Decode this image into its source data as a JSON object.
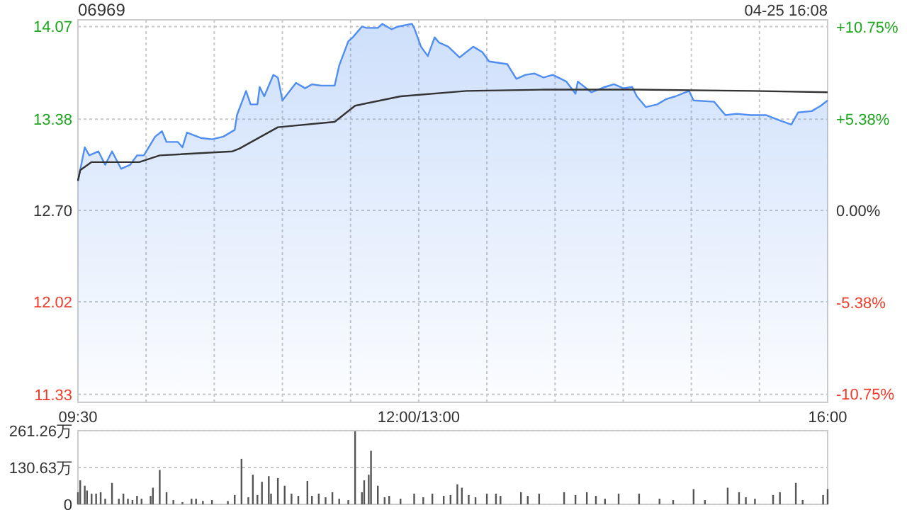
{
  "chart_data": [
    {
      "type": "area",
      "title": "06969",
      "annotations": [
        "04-25 16:08"
      ],
      "categories": [
        "09:30",
        null,
        null,
        null,
        null,
        null,
        null,
        null,
        null,
        null,
        null,
        null,
        null,
        null,
        null,
        null,
        null,
        null,
        null,
        null,
        null,
        null,
        null,
        null,
        null,
        null,
        null,
        null,
        null,
        null,
        null,
        null,
        null,
        null,
        null,
        null,
        null,
        null,
        null,
        null,
        null,
        null,
        null,
        null,
        null,
        null,
        null,
        null,
        null,
        null,
        null,
        null,
        null,
        null,
        null,
        null,
        null,
        null,
        null,
        null,
        null,
        null,
        null,
        null,
        null,
        null,
        null,
        null,
        null,
        null,
        null,
        null,
        null,
        null,
        null,
        null,
        null,
        null,
        null,
        null,
        null,
        null,
        null,
        null,
        null,
        null,
        null,
        null,
        null,
        null,
        null,
        null,
        null,
        null,
        null,
        null,
        null,
        null,
        null,
        null,
        null,
        null,
        null,
        null,
        null,
        null,
        null,
        null,
        null,
        null,
        null,
        null,
        null,
        null,
        null,
        null,
        null,
        null,
        null,
        null,
        null,
        null,
        null,
        null,
        null,
        null,
        null,
        null,
        null,
        null,
        null,
        null,
        null,
        null,
        null,
        null,
        null,
        null,
        null,
        null,
        null,
        null,
        null,
        null,
        null,
        null,
        null,
        null,
        null,
        null,
        "12:00/13:00",
        null,
        null,
        null,
        null,
        null,
        null,
        null,
        null,
        null,
        null,
        null,
        null,
        null,
        null,
        null,
        null,
        null,
        null,
        null,
        null,
        null,
        null,
        null,
        null,
        null,
        null,
        null,
        null,
        null,
        null,
        null,
        null,
        null,
        null,
        null,
        null,
        null,
        null,
        null,
        null,
        null,
        null,
        null,
        null,
        null,
        null,
        null,
        null,
        null,
        null,
        null,
        null,
        null,
        null,
        null,
        null,
        null,
        null,
        null,
        null,
        null,
        null,
        null,
        null,
        null,
        null,
        null,
        null,
        null,
        null,
        null,
        null,
        null,
        null,
        null,
        null,
        null,
        null,
        null,
        null,
        null,
        null,
        null,
        null,
        null,
        null,
        null,
        null,
        null,
        null,
        null,
        null,
        null,
        null,
        null,
        null,
        null,
        null,
        null,
        null,
        null,
        null,
        null,
        null,
        null,
        null,
        null,
        null,
        null,
        null,
        null,
        null,
        null,
        null,
        null,
        null,
        null,
        null,
        null,
        null,
        null,
        null,
        null,
        null,
        null,
        null,
        null,
        null,
        null,
        null,
        null,
        null,
        null,
        null,
        null,
        null,
        null,
        null,
        null,
        null,
        null,
        null,
        null,
        null,
        null,
        null,
        null,
        null,
        null,
        null,
        null,
        null,
        null,
        null,
        null,
        null,
        null,
        null,
        null,
        null,
        null,
        null,
        null,
        null,
        null,
        null,
        null,
        null,
        null,
        null,
        null,
        null,
        null,
        null,
        null,
        null,
        null,
        null,
        null,
        "16:00"
      ],
      "ylim": [
        11.27,
        14.12
      ],
      "yticks": [
        {
          "value": 11.33,
          "label": "11.33"
        },
        {
          "value": 12.02,
          "label": "12.02"
        },
        {
          "value": 12.7,
          "label": "12.70"
        },
        {
          "value": 13.38,
          "label": "13.38"
        },
        {
          "value": 14.07,
          "label": "14.07"
        }
      ],
      "y2lim": [
        -11.26,
        11.18
      ],
      "y2ticks": [
        {
          "value": -10.75,
          "label": "-10.75%"
        },
        {
          "value": -5.38,
          "label": "-5.38%"
        },
        {
          "value": 0,
          "label": "0.00%"
        },
        {
          "value": 5.38,
          "label": "+5.38%"
        },
        {
          "value": 10.75,
          "label": "+10.75%"
        }
      ],
      "grid": true,
      "series": [
        {
          "color": "#4f8ef0",
          "values": [
            12.92,
            null,
            null,
            13.17,
            null,
            13.11,
            null,
            null,
            null,
            13.14,
            null,
            null,
            13.04,
            null,
            null,
            13.14,
            null,
            null,
            null,
            13.01,
            null,
            null,
            null,
            13.04,
            null,
            null,
            13.11,
            null,
            null,
            13.11,
            null,
            null,
            null,
            null,
            13.25,
            null,
            null,
            13.29,
            null,
            13.21,
            null,
            null,
            null,
            null,
            13.21,
            null,
            13.17,
            null,
            13.28,
            null,
            null,
            null,
            null,
            null,
            13.24,
            null,
            null,
            null,
            null,
            13.23,
            null,
            null,
            null,
            null,
            13.25,
            null,
            null,
            null,
            null,
            13.3,
            13.41,
            null,
            null,
            null,
            13.59,
            null,
            13.49,
            null,
            null,
            13.49,
            13.62,
            null,
            13.55,
            null,
            null,
            null,
            13.71,
            null,
            13.69,
            null,
            13.52,
            null,
            null,
            null,
            null,
            null,
            13.65,
            null,
            null,
            null,
            13.61,
            null,
            null,
            13.64,
            null,
            null,
            null,
            13.63,
            null,
            null,
            null,
            null,
            null,
            13.63,
            null,
            13.78,
            null,
            null,
            null,
            13.96,
            null,
            13.99,
            null,
            null,
            null,
            14.07,
            null,
            14.06,
            null,
            null,
            null,
            null,
            14.06,
            null,
            14.09,
            null,
            null,
            null,
            14.05,
            null,
            null,
            14.07,
            null,
            null,
            null,
            null,
            null,
            14.09,
            14.06,
            null,
            null,
            13.92,
            null,
            null,
            13.85,
            null,
            null,
            13.99,
            null,
            13.95,
            null,
            null,
            null,
            13.92,
            null,
            null,
            null,
            null,
            13.84,
            null,
            null,
            null,
            null,
            null,
            13.92,
            null,
            null,
            null,
            13.88,
            null,
            null,
            13.81,
            null,
            null,
            null,
            null,
            null,
            null,
            null,
            13.79,
            null,
            null,
            null,
            13.68,
            null,
            null,
            null,
            13.71,
            null,
            null,
            null,
            13.72,
            null,
            null,
            null,
            13.69,
            null,
            null,
            null,
            13.71,
            null,
            null,
            null,
            null,
            null,
            13.66,
            null,
            null,
            null,
            13.57,
            13.66,
            null,
            null,
            null,
            null,
            null,
            13.58,
            null,
            null,
            null,
            null,
            null,
            13.62,
            null,
            null,
            null,
            13.64,
            null,
            null,
            null,
            13.61,
            null,
            null,
            null,
            13.62,
            null,
            13.55,
            null,
            null,
            null,
            13.47,
            null,
            null,
            null,
            null,
            13.49,
            null,
            null,
            null,
            13.53,
            null,
            null,
            null,
            13.55,
            null,
            null,
            null,
            null,
            null,
            13.59,
            null,
            13.52,
            null,
            null,
            null,
            null,
            null,
            null,
            null,
            null,
            13.51,
            null,
            null,
            null,
            null,
            13.41,
            null,
            null,
            null,
            null,
            13.42,
            null,
            null,
            null,
            null,
            null,
            13.41,
            null,
            null,
            null,
            null,
            null,
            null,
            13.41,
            null,
            null,
            null,
            null,
            null,
            13.37,
            null,
            null,
            null,
            null,
            13.34,
            null,
            null,
            13.43,
            null,
            null,
            null,
            null,
            null,
            13.44,
            null,
            null,
            null,
            13.48,
            null,
            null,
            13.52
          ]
        },
        {
          "type": "line",
          "color": "#333333",
          "values": [
            12.92,
            13.0,
            null,
            null,
            null,
            null,
            13.06,
            null,
            null,
            null,
            null,
            null,
            null,
            null,
            null,
            null,
            null,
            null,
            null,
            null,
            null,
            null,
            null,
            null,
            null,
            null,
            null,
            13.06,
            null,
            null,
            null,
            null,
            null,
            null,
            null,
            null,
            13.11,
            null,
            null,
            null,
            null,
            null,
            null,
            null,
            null,
            null,
            null,
            null,
            null,
            null,
            null,
            null,
            null,
            null,
            null,
            null,
            null,
            null,
            null,
            null,
            null,
            null,
            null,
            null,
            null,
            null,
            null,
            null,
            13.14,
            null,
            null,
            13.16,
            null,
            null,
            null,
            null,
            null,
            null,
            null,
            null,
            null,
            null,
            null,
            null,
            null,
            null,
            null,
            null,
            13.32,
            null,
            null,
            null,
            null,
            null,
            null,
            null,
            null,
            null,
            null,
            null,
            null,
            null,
            null,
            null,
            null,
            null,
            null,
            null,
            null,
            null,
            null,
            null,
            null,
            13.36,
            null,
            null,
            null,
            null,
            null,
            null,
            null,
            null,
            13.48,
            null,
            null,
            null,
            null,
            null,
            null,
            null,
            null,
            null,
            null,
            null,
            null,
            null,
            null,
            null,
            null,
            null,
            null,
            null,
            13.55,
            null,
            null,
            null,
            null,
            null,
            null,
            null,
            null,
            null,
            null,
            null,
            null,
            null,
            null,
            null,
            null,
            null,
            null,
            null,
            null,
            null,
            null,
            null,
            null,
            null,
            null,
            null,
            null,
            13.59,
            null,
            null,
            null,
            null,
            null,
            null,
            null,
            null,
            null,
            null,
            null,
            null,
            null,
            null,
            null,
            null,
            null,
            null,
            null,
            null,
            null,
            null,
            null,
            null,
            null,
            null,
            null,
            null,
            null,
            null,
            null,
            null,
            null,
            13.6,
            null,
            null,
            null,
            null,
            null,
            null,
            null,
            null,
            null,
            null,
            null,
            null,
            null,
            null,
            null,
            null,
            null,
            null,
            null,
            null,
            null,
            null,
            null,
            null,
            null,
            null,
            null,
            null,
            null,
            null,
            null,
            null,
            null,
            null,
            null,
            null,
            null,
            null,
            null,
            null,
            13.6,
            null,
            null,
            null,
            null,
            null,
            null,
            null,
            null,
            null,
            null,
            null,
            null,
            null,
            null,
            null,
            null,
            null,
            null,
            null,
            null,
            null,
            null,
            null,
            null,
            null,
            null,
            null,
            null,
            null,
            null,
            null,
            null,
            null,
            null,
            null,
            null,
            null,
            null,
            null,
            null,
            null,
            null,
            null,
            null,
            null,
            null,
            null,
            null,
            null,
            null,
            13.59,
            null,
            null,
            null,
            null,
            null,
            null,
            null,
            null,
            null,
            null,
            null,
            null,
            null,
            null,
            null,
            null,
            null,
            null,
            null,
            null,
            null,
            null,
            null,
            null,
            null,
            null,
            null,
            null,
            null,
            null,
            null,
            null,
            13.58
          ]
        }
      ]
    },
    {
      "type": "bar",
      "ylim": [
        0,
        261.26
      ],
      "categories": [
        null,
        null,
        null,
        null,
        null,
        null,
        null,
        null,
        null,
        null,
        null,
        null,
        null,
        null,
        null,
        null,
        null,
        null,
        null,
        null,
        null,
        null,
        null,
        null,
        null,
        null,
        null,
        null,
        null,
        null,
        null,
        null,
        null,
        null,
        null,
        null,
        null,
        null,
        null,
        null,
        null,
        null,
        null,
        null,
        null,
        null,
        null,
        null,
        null,
        null,
        null,
        null,
        null,
        null,
        null,
        null,
        null,
        null,
        null,
        null,
        null,
        null,
        null,
        null,
        null,
        null,
        null,
        null,
        null,
        null,
        null,
        null,
        null,
        null,
        null,
        null,
        null,
        null,
        null,
        null,
        null,
        null,
        null,
        null,
        null,
        null,
        null,
        null,
        null,
        null,
        null,
        null,
        null,
        null,
        null,
        null,
        null,
        null,
        null,
        null,
        null,
        null,
        null,
        null,
        null,
        null,
        null,
        null,
        null,
        null,
        null,
        null,
        null,
        null,
        null,
        null,
        null,
        null,
        null,
        null,
        null,
        null,
        null,
        null,
        null,
        null,
        null,
        null,
        null,
        null,
        null,
        null,
        null,
        null,
        null,
        null,
        null,
        null,
        null,
        null,
        null,
        null,
        null,
        null,
        null,
        null,
        null,
        null,
        null,
        null,
        null,
        null,
        null,
        null,
        null,
        null,
        null,
        null,
        null,
        null,
        null,
        null,
        null,
        null,
        null,
        null,
        null,
        null,
        null,
        null,
        null,
        null,
        null,
        null,
        null,
        null,
        null,
        null,
        null,
        null,
        null,
        null,
        null,
        null,
        null,
        null,
        null,
        null,
        null,
        null,
        null,
        null,
        null,
        null,
        null,
        null,
        null,
        null,
        null,
        null,
        null,
        null,
        null,
        null,
        null,
        null,
        null,
        null,
        null,
        null,
        null,
        null,
        null,
        null,
        null,
        null,
        null,
        null,
        null,
        null,
        null,
        null,
        null,
        null,
        null,
        null,
        null,
        null,
        null,
        null,
        null,
        null,
        null,
        null,
        null,
        null,
        null,
        null,
        null,
        null,
        null,
        null,
        null,
        null,
        null,
        null,
        null,
        null,
        null,
        null,
        null,
        null,
        null,
        null,
        null,
        null,
        null,
        null,
        null,
        null,
        null,
        null,
        null,
        null,
        null,
        null,
        null,
        null,
        null,
        null,
        null,
        null,
        null,
        null,
        null,
        null,
        null,
        null,
        null,
        null,
        null,
        null,
        null,
        null,
        null,
        null,
        null,
        null,
        null,
        null,
        null,
        null,
        null,
        null,
        null,
        null,
        null,
        null,
        null,
        null,
        null,
        null,
        null,
        null,
        null,
        null,
        null,
        null,
        null,
        null,
        null,
        null,
        null,
        null,
        null,
        null,
        null,
        null,
        null,
        null,
        null,
        null,
        null,
        null,
        null,
        null,
        null,
        null,
        null,
        null,
        null
      ],
      "yticks": [
        0,
        {
          "value": 130.63,
          "label": "130.63万"
        },
        {
          "value": 261.26,
          "label": "261.26万"
        }
      ],
      "grid": "y",
      "color": "#555555",
      "values": [
        43,
        85,
        null,
        66,
        49,
        null,
        38,
        null,
        38,
        null,
        43,
        null,
        20,
        null,
        null,
        76,
        null,
        null,
        20,
        null,
        38,
        null,
        20,
        null,
        15,
        null,
        30,
        null,
        20,
        null,
        null,
        null,
        30,
        59,
        null,
        null,
        122,
        null,
        null,
        43,
        null,
        null,
        15,
        null,
        null,
        null,
        8,
        null,
        null,
        null,
        20,
        null,
        20,
        null,
        null,
        12,
        null,
        null,
        null,
        15,
        null,
        null,
        null,
        null,
        null,
        null,
        12,
        null,
        null,
        33,
        null,
        null,
        161,
        null,
        null,
        25,
        null,
        105,
        null,
        33,
        null,
        80,
        null,
        null,
        100,
        38,
        null,
        null,
        93,
        null,
        null,
        66,
        null,
        null,
        38,
        null,
        null,
        30,
        null,
        null,
        null,
        83,
        null,
        30,
        null,
        null,
        38,
        null,
        null,
        25,
        null,
        null,
        43,
        null,
        null,
        20,
        null,
        null,
        null,
        15,
        null,
        null,
        259,
        null,
        null,
        43,
        85,
        null,
        105,
        190,
        null,
        null,
        66,
        null,
        null,
        25,
        null,
        30,
        null,
        null,
        null,
        null,
        20,
        null,
        null,
        null,
        null,
        null,
        38,
        null,
        null,
        null,
        25,
        null,
        null,
        null,
        38,
        null,
        null,
        null,
        null,
        30,
        null,
        null,
        33,
        null,
        null,
        71,
        null,
        59,
        null,
        null,
        33,
        null,
        null,
        25,
        null,
        null,
        null,
        null,
        38,
        null,
        null,
        null,
        38,
        null,
        30,
        null,
        null,
        null,
        null,
        null,
        null,
        null,
        null,
        43,
        null,
        null,
        30,
        null,
        null,
        null,
        null,
        38,
        null,
        null,
        null,
        null,
        null,
        null,
        null,
        null,
        null,
        null,
        43,
        null,
        null,
        null,
        null,
        33,
        null,
        null,
        null,
        null,
        43,
        null,
        null,
        null,
        30,
        null,
        null,
        null,
        20,
        null,
        null,
        null,
        null,
        null,
        38,
        null,
        null,
        null,
        null,
        null,
        null,
        null,
        null,
        38,
        null,
        null,
        null,
        null,
        null,
        null,
        null,
        null,
        20,
        null,
        null,
        null,
        null,
        null,
        15,
        null,
        null,
        null,
        null,
        null,
        null,
        null,
        null,
        54,
        null,
        null,
        null,
        null,
        15,
        null,
        null,
        null,
        null,
        null,
        null,
        null,
        null,
        null,
        59,
        null,
        null,
        null,
        null,
        43,
        null,
        null,
        25,
        null,
        null,
        null,
        20,
        null,
        null,
        null,
        null,
        null,
        null,
        null,
        33,
        null,
        null,
        43,
        null,
        null,
        null,
        null,
        null,
        null,
        76,
        null,
        null,
        15,
        null,
        null,
        null,
        null,
        null,
        null,
        null,
        null,
        33,
        null,
        54
      ]
    }
  ]
}
